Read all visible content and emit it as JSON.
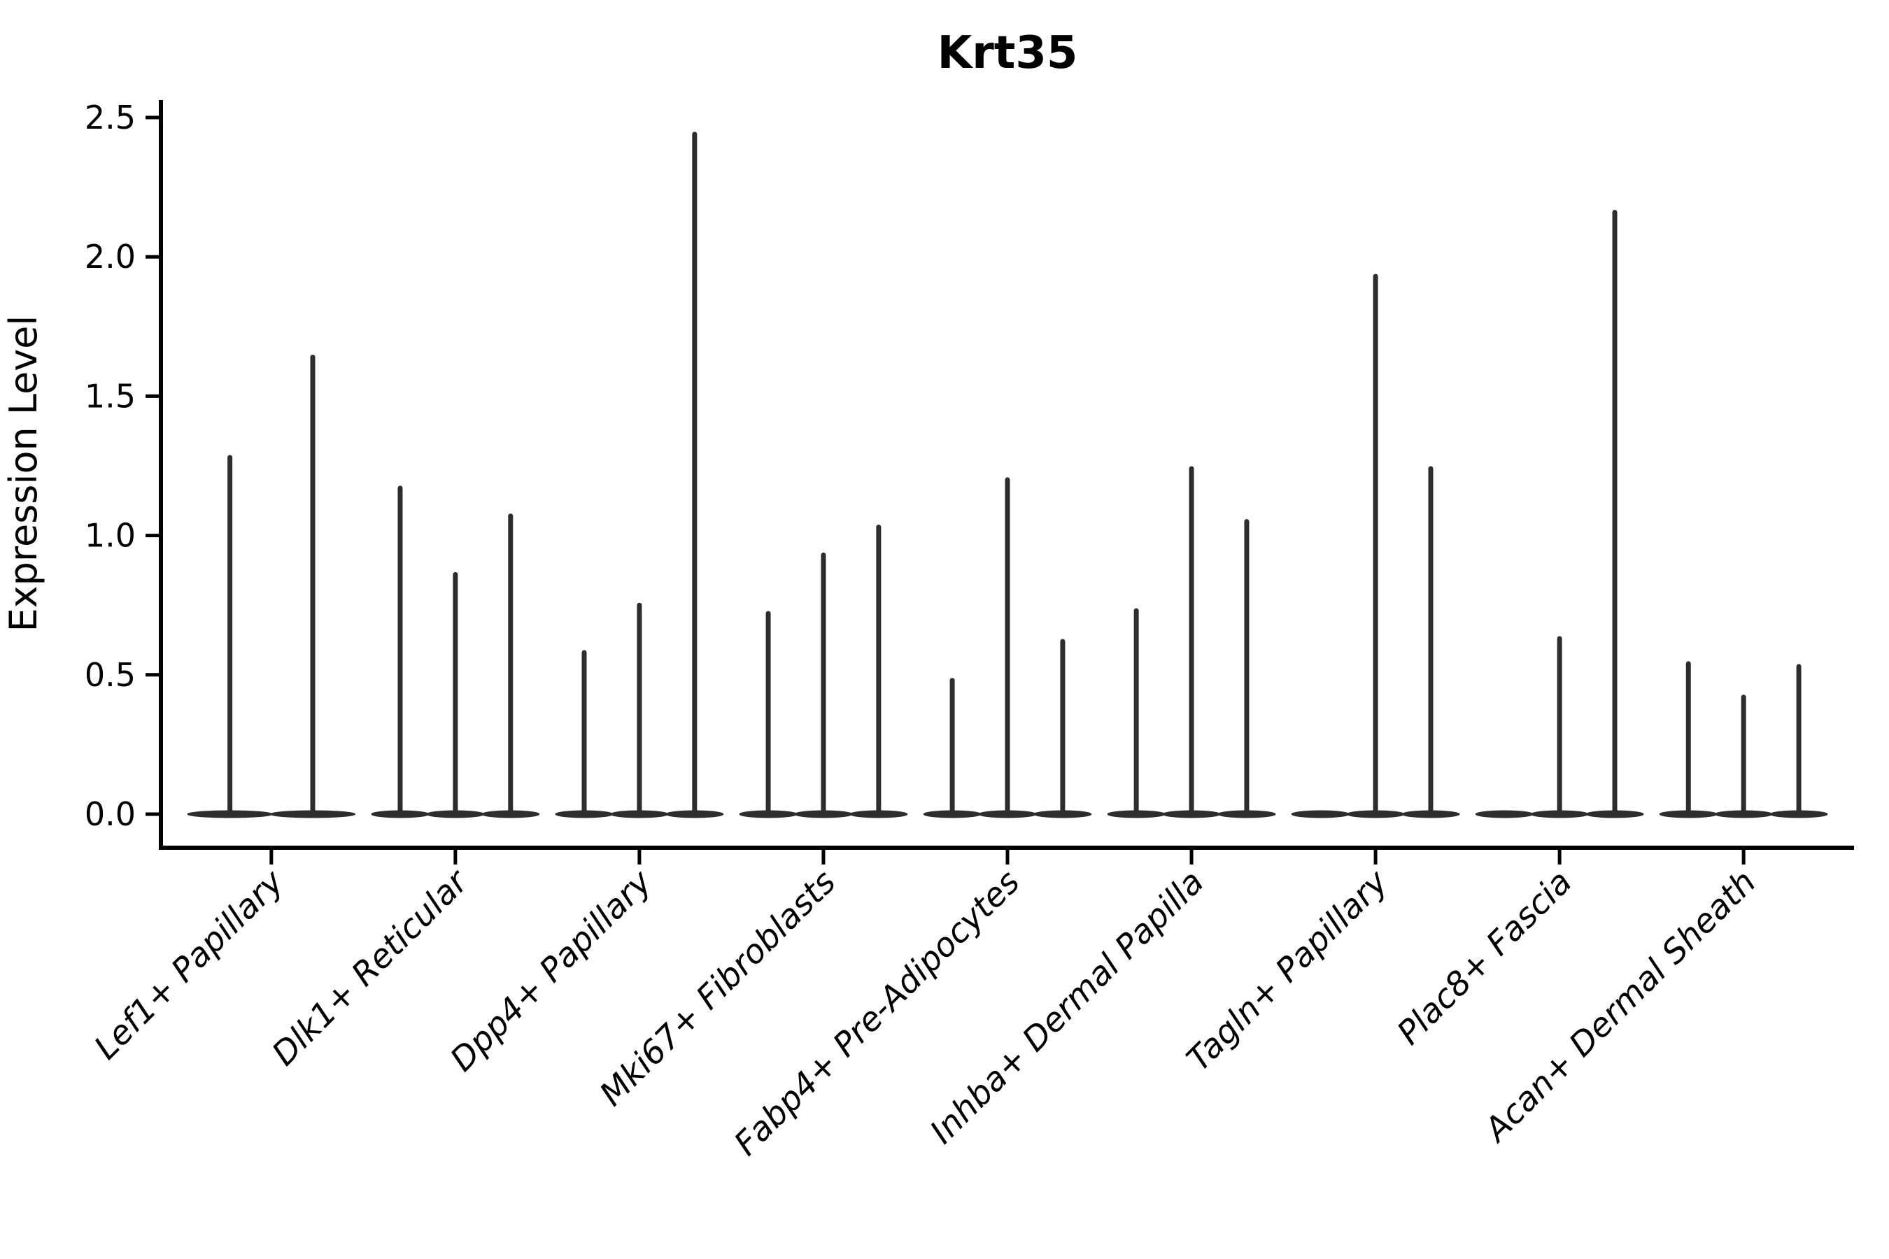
{
  "figure": {
    "background": "#ffffff"
  },
  "chart_data": {
    "type": "violin",
    "title": "Krt35",
    "xlabel": "",
    "ylabel": "Expression Level",
    "ylim": [
      -0.12,
      2.56
    ],
    "yticks": [
      0.0,
      0.5,
      1.0,
      1.5,
      2.0,
      2.5
    ],
    "ytick_labels": [
      "0.0",
      "0.5",
      "1.0",
      "1.5",
      "2.0",
      "2.5"
    ],
    "grid": false,
    "legend": "none",
    "style_note": "collapsed violins: flat lens at 0 expression with thin vertical spike to max expression",
    "colors": {
      "violin": "#2d2d2d",
      "axis": "#000000",
      "text": "#000000",
      "background": "#ffffff"
    },
    "categories": [
      "Lef1+ Papillary",
      "Dlk1+ Reticular",
      "Dpp4+ Papillary",
      "Mki67+ Fibroblasts",
      "Fabp4+ Pre-Adipocytes",
      "Inhba+ Dermal Papilla",
      "Tagln+ Papillary",
      "Plac8+ Fascia",
      "Acan+ Dermal Sheath"
    ],
    "groups": [
      {
        "label": "Lef1+ Papillary",
        "violin_max_values": [
          1.28,
          1.64
        ]
      },
      {
        "label": "Dlk1+ Reticular",
        "violin_max_values": [
          1.17,
          0.86,
          1.07
        ]
      },
      {
        "label": "Dpp4+ Papillary",
        "violin_max_values": [
          0.58,
          0.75,
          2.44
        ]
      },
      {
        "label": "Mki67+ Fibroblasts",
        "violin_max_values": [
          0.72,
          0.93,
          1.03
        ]
      },
      {
        "label": "Fabp4+ Pre-Adipocytes",
        "violin_max_values": [
          0.48,
          1.2,
          0.62
        ]
      },
      {
        "label": "Inhba+ Dermal Papilla",
        "violin_max_values": [
          0.73,
          1.24,
          1.05
        ]
      },
      {
        "label": "Tagln+ Papillary",
        "violin_max_values": [
          0.0,
          1.93,
          1.24
        ]
      },
      {
        "label": "Plac8+ Fascia",
        "violin_max_values": [
          0.0,
          0.63,
          2.16
        ]
      },
      {
        "label": "Acan+ Dermal Sheath",
        "violin_max_values": [
          0.54,
          0.42,
          0.53
        ]
      }
    ]
  }
}
